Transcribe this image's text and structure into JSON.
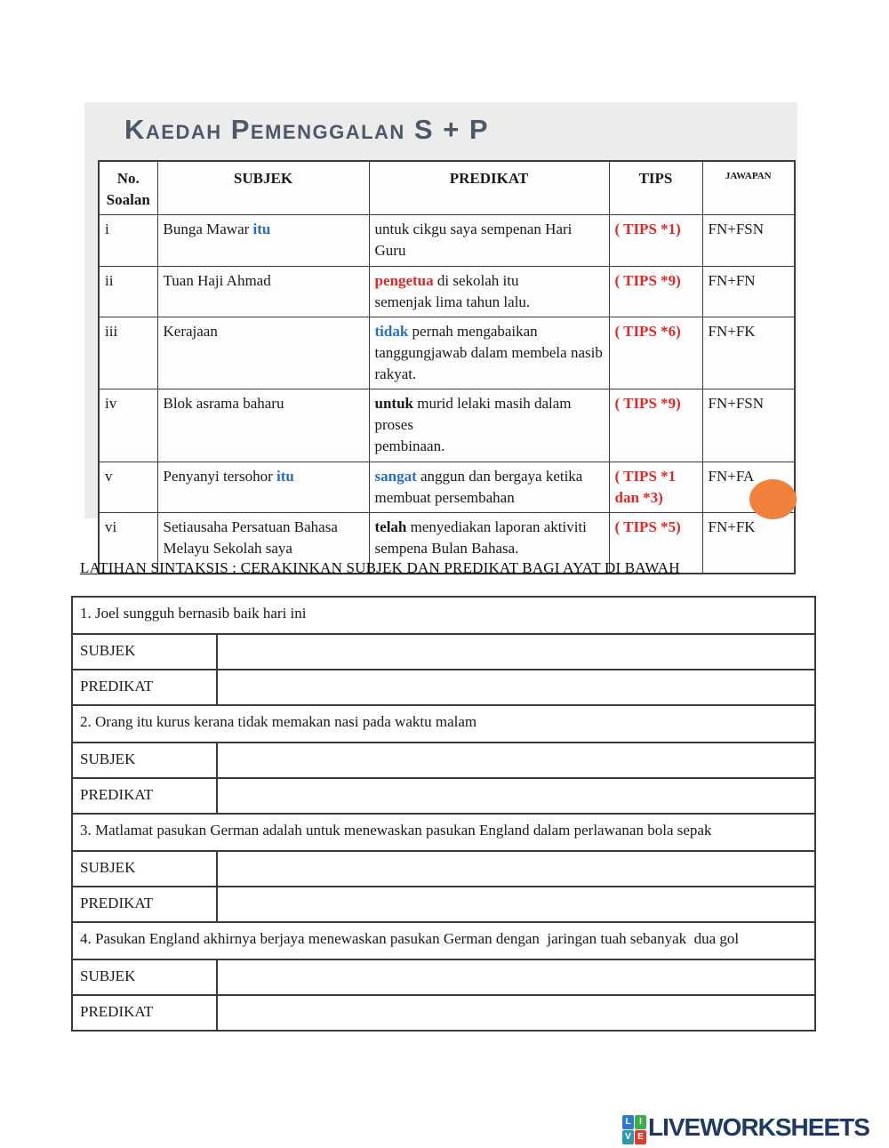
{
  "scan": {
    "title": "Kaedah Pemenggalan S + P",
    "table": {
      "headers": {
        "no": "No. Soalan",
        "subjek": "SUBJEK",
        "predikat": "PREDIKAT",
        "tips": "TIPS",
        "jawapan": "JAWAPAN"
      },
      "rows": [
        {
          "no": "i",
          "subjek": [
            {
              "t": "Bunga Mawar ",
              "s": "plain"
            },
            {
              "t": "itu",
              "s": "blue"
            }
          ],
          "predikat": [
            {
              "t": "untuk cikgu saya sempenan Hari Guru",
              "s": "plain"
            }
          ],
          "tips": "( TIPS *1)",
          "jawapan": "FN+FSN"
        },
        {
          "no": "ii",
          "subjek": [
            {
              "t": "Tuan Haji Ahmad",
              "s": "plain"
            }
          ],
          "predikat": [
            {
              "t": "pengetua",
              "s": "red"
            },
            {
              "t": " di sekolah itu\nsemenjak lima tahun lalu.",
              "s": "plain"
            }
          ],
          "tips": "( TIPS *9)",
          "jawapan": "FN+FN"
        },
        {
          "no": "iii",
          "subjek": [
            {
              "t": "Kerajaan",
              "s": "plain"
            }
          ],
          "predikat": [
            {
              "t": "tidak",
              "s": "blue"
            },
            {
              "t": " pernah mengabaikan\ntanggungjawab dalam membela nasib\nrakyat.",
              "s": "plain"
            }
          ],
          "tips": "( TIPS *6)",
          "jawapan": "FN+FK"
        },
        {
          "no": "iv",
          "subjek": [
            {
              "t": "Blok asrama baharu",
              "s": "plain"
            }
          ],
          "predikat": [
            {
              "t": "untuk",
              "s": "bold"
            },
            {
              "t": " murid lelaki masih dalam proses\npembinaan.",
              "s": "plain"
            }
          ],
          "tips": "( TIPS *9)",
          "jawapan": "FN+FSN"
        },
        {
          "no": "v",
          "subjek": [
            {
              "t": "Penyanyi tersohor ",
              "s": "plain"
            },
            {
              "t": "itu",
              "s": "blue"
            }
          ],
          "predikat": [
            {
              "t": "sangat",
              "s": "blue"
            },
            {
              "t": " anggun dan bergaya ketika\nmembuat persembahan",
              "s": "plain"
            }
          ],
          "tips": "( TIPS *1\ndan *3)",
          "jawapan": "FN+FA"
        },
        {
          "no": "vi",
          "subjek": [
            {
              "t": "Setiausaha Persatuan Bahasa\nMelayu Sekolah saya",
              "s": "plain"
            }
          ],
          "predikat": [
            {
              "t": "telah",
              "s": "bold"
            },
            {
              "t": " menyediakan laporan aktiviti\nsempena Bulan Bahasa.",
              "s": "plain"
            }
          ],
          "tips": "( TIPS *5)",
          "jawapan": "FN+FK"
        }
      ]
    }
  },
  "exercise": {
    "heading": "LATIHAN SINTAKSIS : CERAKINKAN SUBJEK DAN PREDIKAT BAGI AYAT DI BAWAH",
    "subject_label": "SUBJEK",
    "predicate_label": "PREDIKAT",
    "items": [
      {
        "sentence": "1. Joel sungguh bernasib baik hari ini"
      },
      {
        "sentence": "2. Orang itu kurus kerana tidak memakan nasi pada waktu malam"
      },
      {
        "sentence": "3. Matlamat pasukan German adalah untuk menewaskan pasukan England dalam perlawanan bola sepak"
      },
      {
        "sentence": "4. Pasukan England akhirnya berjaya menewaskan pasukan German dengan  jaringan tuah sebanyak  dua gol"
      }
    ]
  },
  "footer": {
    "brand": "LIVEWORKSHEETS",
    "icon_letters": [
      "L",
      "I",
      "V",
      "E"
    ],
    "icon_colors": [
      "#2e79d0",
      "#3fae49",
      "#2d9aa8",
      "#e23b2e"
    ],
    "brand_color": "#1d3a63"
  },
  "colors": {
    "highlight_blue": "#2a6fc2",
    "highlight_red": "#e02828",
    "title_slate": "#4e5869",
    "scan_background": "#ececec",
    "orange_marker": "#f0813b"
  }
}
